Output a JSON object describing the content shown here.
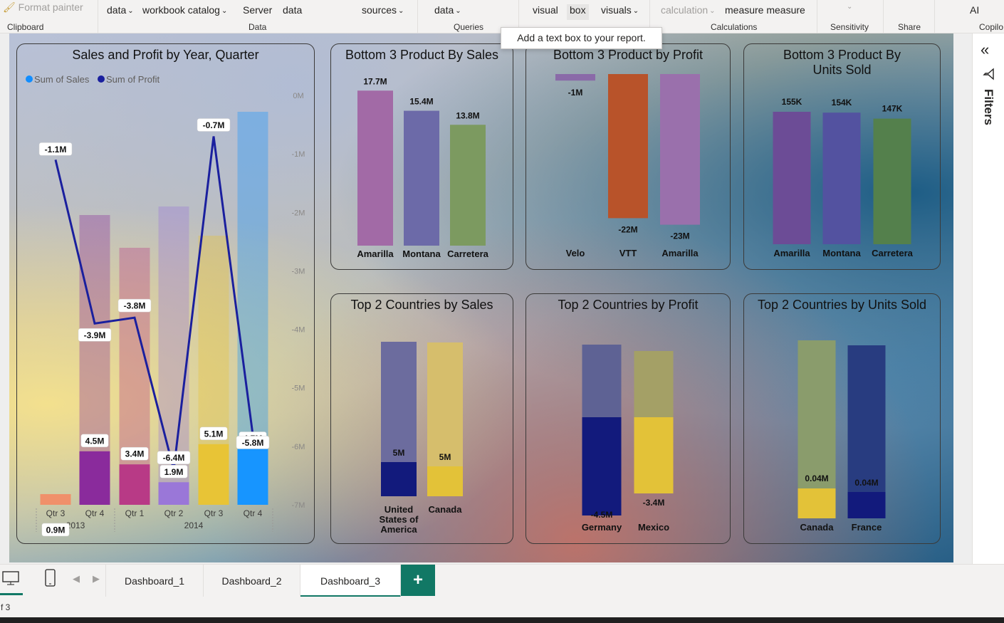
{
  "ribbon": {
    "format_painter": "Format painter",
    "clipboard_group": "Clipboard",
    "data_dropdown": "data",
    "workbook_catalog": "workbook catalog",
    "server": "Server",
    "data": "data",
    "sources": "sources",
    "data_group": "Data",
    "queries_data": "data",
    "queries_group": "Queries",
    "visual": "visual",
    "box": "box",
    "visuals": "visuals",
    "calculation": "calculation",
    "measure_measure": "measure measure",
    "calculations_group": "Calculations",
    "sensitivity_group": "Sensitivity",
    "share_group": "Share",
    "ai": "AI",
    "copilot_group": "Copilo"
  },
  "tooltip": "Add a text box to your report.",
  "right_panel": {
    "filters": "Filters"
  },
  "pages": {
    "tabs": [
      "Dashboard_1",
      "Dashboard_2",
      "Dashboard_3"
    ],
    "active": "Dashboard_3",
    "add_label": "+"
  },
  "status": {
    "page_info": "f 3"
  },
  "colors": {
    "accent": "#117865",
    "profit_line": "#1a1f9e",
    "sales_legend": "#118dff"
  },
  "cards": {
    "sales_profit": "Sales and Profit by Year, Quarter",
    "bottom_sales": "Bottom 3 Product By Sales",
    "bottom_profit": "Bottom 3 Product by Profit",
    "bottom_units": "Bottom 3 Product By Units Sold",
    "top_sales": "Top 2 Countries by Sales",
    "top_profit": "Top 2 Countries by Profit",
    "top_units": "Top 2 Countries by Units Sold"
  },
  "chart_data": [
    {
      "id": "sales_profit",
      "type": "bar",
      "title": "Sales and Profit by Year, Quarter",
      "legend": [
        "Sum of  Sales",
        "Sum of Profit"
      ],
      "legend_position": "top-left",
      "categories": [
        "Qtr 3",
        "Qtr 4",
        "Qtr 1",
        "Qtr 2",
        "Qtr 3",
        "Qtr 4"
      ],
      "years": [
        {
          "label": "2013",
          "span": 2
        },
        {
          "label": "2014",
          "span": 4
        }
      ],
      "series": [
        {
          "name": "Sum of  Sales",
          "kind": "bar",
          "values": [
            0.9,
            4.5,
            3.4,
            1.9,
            5.1,
            4.7
          ],
          "labels": [
            "0.9M",
            "4.5M",
            "3.4M",
            "1.9M",
            "5.1M",
            "4.7M"
          ],
          "colors": [
            "#f0906a",
            "#8a2b9c",
            "#b83a86",
            "#9a77d8",
            "#e8c436",
            "#1795ff"
          ]
        },
        {
          "name": "Sum of Profit",
          "kind": "line",
          "values": [
            -1.1,
            -3.9,
            -3.8,
            -6.4,
            -0.7,
            -5.8
          ],
          "labels": [
            "-1.1M",
            "-3.9M",
            "-3.8M",
            "-6.4M",
            "-0.7M",
            "-5.8M"
          ]
        }
      ],
      "y2_ticks": [
        "0M",
        "-1M",
        "-2M",
        "-3M",
        "-4M",
        "-5M",
        "-6M",
        "-7M"
      ],
      "y2lim": [
        -7,
        0
      ],
      "grid": false
    },
    {
      "id": "bottom_sales",
      "type": "bar",
      "categories": [
        "Amarilla",
        "Montana",
        "Carretera"
      ],
      "values": [
        17.7,
        15.4,
        13.8
      ],
      "labels": [
        "17.7M",
        "15.4M",
        "13.8M"
      ],
      "colors": [
        "#a26aa6",
        "#6c6aa8",
        "#7c9a60"
      ]
    },
    {
      "id": "bottom_profit",
      "type": "bar",
      "categories": [
        "Velo",
        "VTT",
        "Amarilla"
      ],
      "values": [
        -1,
        -22,
        -23
      ],
      "labels": [
        "-1M",
        "-22M",
        "-23M"
      ],
      "colors": [
        "#8a6aa8",
        "#b8532a",
        "#9a70ac"
      ]
    },
    {
      "id": "bottom_units",
      "type": "bar",
      "categories": [
        "Amarilla",
        "Montana",
        "Carretera"
      ],
      "values": [
        155,
        154,
        147
      ],
      "labels": [
        "155K",
        "154K",
        "147K"
      ],
      "colors": [
        "#6c4c96",
        "#5352a0",
        "#54804c"
      ]
    },
    {
      "id": "top_sales",
      "type": "bar",
      "categories": [
        "United States of America",
        "Canada"
      ],
      "values": [
        5,
        5
      ],
      "labels": [
        "5M",
        "5M"
      ],
      "colors": [
        "#121a7c",
        "#e3c238"
      ],
      "upper_colors": [
        "#6c6c9e",
        "#d6be6c"
      ]
    },
    {
      "id": "top_profit",
      "type": "bar",
      "categories": [
        "Germany",
        "Mexico"
      ],
      "values": [
        -4.5,
        -3.4
      ],
      "labels": [
        "-4.5M",
        "-3.4M"
      ],
      "colors": [
        "#121a7c",
        "#e3c238"
      ],
      "upper_colors": [
        "#5e6294",
        "#a4a066"
      ]
    },
    {
      "id": "top_units",
      "type": "bar",
      "categories": [
        "Canada",
        "France"
      ],
      "values": [
        0.04,
        0.04
      ],
      "labels": [
        "0.04M",
        "0.04M"
      ],
      "colors": [
        "#e3c238",
        "#121a7c"
      ],
      "upper_colors": [
        "#8a9c6c",
        "#283c80"
      ]
    }
  ]
}
